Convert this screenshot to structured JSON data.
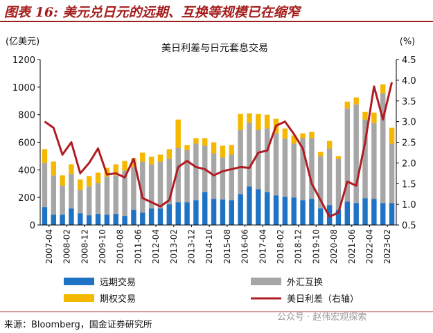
{
  "figure_title": "图表 16: 美元兑日元的远期、互换等规模已在缩窄",
  "source": "来源：Bloomberg，国金证券研究所",
  "watermark": "公众号 · 赵伟宏观探索",
  "colors": {
    "forward": "#1f73c4",
    "swap": "#a6a6a6",
    "option": "#f5b800",
    "spread": "#b01c22",
    "accent": "#a51c1c"
  },
  "chart_data": {
    "type": "bar",
    "stacked": true,
    "title": "美日利差与日元套息交易",
    "ylabel_left": "(亿美元)",
    "ylabel_right": "(%)",
    "ylim_left": [
      0,
      1200
    ],
    "ylim_right": [
      0.5,
      4.5
    ],
    "yticks_left": [
      "0",
      "200",
      "400",
      "600",
      "800",
      "1000",
      "1200"
    ],
    "yticks_right": [
      "0.5",
      "1.0",
      "1.5",
      "2.0",
      "2.5",
      "3.0",
      "3.5",
      "4.0",
      "4.5"
    ],
    "grid": false,
    "legend": "bottom",
    "xtick_labels": [
      "2007-04",
      "2008-02",
      "2008-12",
      "2009-10",
      "2010-08",
      "2011-06",
      "2012-04",
      "2013-02",
      "2013-12",
      "2014-10",
      "2015-08",
      "2016-06",
      "2017-04",
      "2018-02",
      "2018-12",
      "2019-10",
      "2020-08",
      "2021-06",
      "2022-04",
      "2023-02"
    ],
    "categories": [
      "2007-04",
      "2007-10",
      "2008-02",
      "2008-06",
      "2008-12",
      "2009-04",
      "2009-10",
      "2010-04",
      "2010-08",
      "2010-10",
      "2011-06",
      "2011-10",
      "2012-04",
      "2012-10",
      "2013-02",
      "2013-06",
      "2013-12",
      "2014-04",
      "2014-10",
      "2015-04",
      "2015-08",
      "2015-10",
      "2016-06",
      "2016-10",
      "2017-04",
      "2017-06",
      "2018-02",
      "2018-06",
      "2018-12",
      "2019-04",
      "2019-10",
      "2020-04",
      "2020-08",
      "2020-10",
      "2021-06",
      "2021-10",
      "2022-04",
      "2022-10",
      "2023-02",
      "2023-06"
    ],
    "series": [
      {
        "name": "远期交易",
        "type": "bar",
        "axis": "left",
        "values": [
          130,
          75,
          75,
          120,
          85,
          70,
          80,
          75,
          80,
          65,
          110,
          90,
          120,
          120,
          150,
          165,
          165,
          180,
          240,
          190,
          185,
          180,
          225,
          280,
          260,
          240,
          215,
          205,
          200,
          180,
          190,
          120,
          145,
          110,
          170,
          160,
          195,
          190,
          160,
          160
        ]
      },
      {
        "name": "外汇互换",
        "type": "bar",
        "axis": "left",
        "values": [
          320,
          285,
          210,
          250,
          170,
          210,
          225,
          275,
          280,
          330,
          310,
          370,
          320,
          340,
          330,
          395,
          380,
          410,
          335,
          330,
          305,
          330,
          465,
          460,
          430,
          460,
          450,
          420,
          390,
          450,
          440,
          380,
          410,
          370,
          675,
          715,
          570,
          550,
          795,
          430
        ]
      },
      {
        "name": "期权交易",
        "type": "bar",
        "axis": "left",
        "values": [
          100,
          100,
          75,
          70,
          75,
          75,
          75,
          65,
          80,
          70,
          65,
          65,
          55,
          50,
          70,
          205,
          35,
          40,
          55,
          80,
          85,
          70,
          115,
          70,
          115,
          100,
          105,
          75,
          60,
          35,
          45,
          30,
          55,
          20,
          50,
          50,
          55,
          75,
          65,
          115
        ]
      },
      {
        "name": "美日利差（右轴）",
        "type": "line",
        "axis": "right",
        "values": [
          3.0,
          2.85,
          2.2,
          2.5,
          1.75,
          2.0,
          2.35,
          1.72,
          1.75,
          1.65,
          2.1,
          1.15,
          1.05,
          0.95,
          1.1,
          1.9,
          2.05,
          1.9,
          1.85,
          1.7,
          1.8,
          1.85,
          1.9,
          1.88,
          2.25,
          2.3,
          2.9,
          3.0,
          2.7,
          2.35,
          1.5,
          1.1,
          0.7,
          0.8,
          1.55,
          1.45,
          2.5,
          3.85,
          3.05,
          3.95
        ]
      }
    ]
  }
}
